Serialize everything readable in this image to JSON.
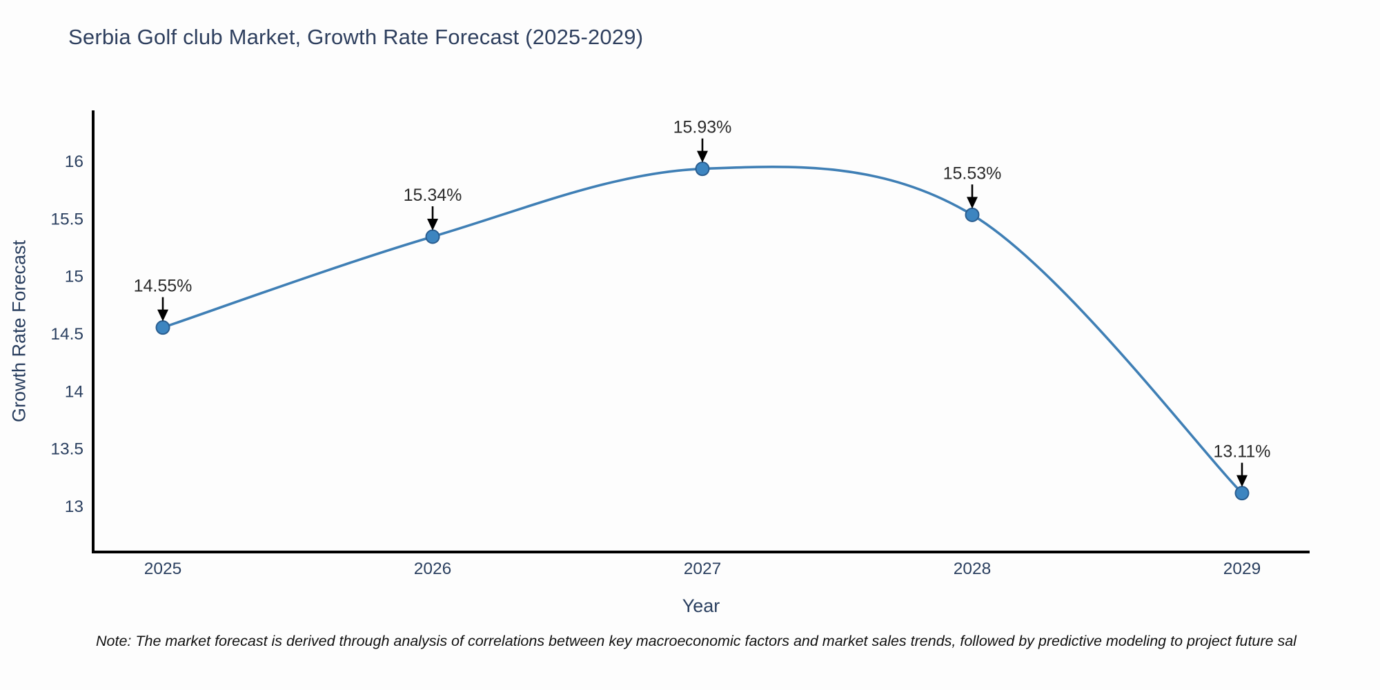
{
  "chart_data": {
    "type": "line",
    "title": "Serbia Golf club Market, Growth Rate Forecast (2025-2029)",
    "xlabel": "Year",
    "ylabel": "Growth Rate Forecast",
    "x": [
      2025,
      2026,
      2027,
      2028,
      2029
    ],
    "series": [
      {
        "name": "Growth Rate Forecast",
        "values": [
          14.55,
          15.34,
          15.93,
          15.53,
          13.11
        ],
        "point_labels": [
          "14.55%",
          "15.34%",
          "15.93%",
          "15.53%",
          "13.11%"
        ]
      }
    ],
    "x_tick_labels": [
      "2025",
      "2026",
      "2027",
      "2028",
      "2029"
    ],
    "y_tick_values": [
      13,
      13.5,
      14,
      14.5,
      15,
      15.5,
      16
    ],
    "y_tick_labels": [
      "13",
      "13.5",
      "14",
      "14.5",
      "15",
      "15.5",
      "16"
    ],
    "ylim": [
      12.6,
      16.44
    ],
    "xlim": [
      2024.74,
      2029.25
    ],
    "grid": false,
    "legend_position": "none",
    "line_shape": "spline",
    "colors": {
      "line": "#3f7fb5",
      "marker_fill": "#3d85c0",
      "marker_edge": "#2a5d8f",
      "annotation_arrow": "#000000",
      "axis_spine": "#000000",
      "tick_text": "#2a3f5f",
      "title_text": "#2e3f5e",
      "background": "#fdfdfd"
    }
  },
  "note": {
    "text": "Note: The market forecast is derived through analysis of correlations between key macroeconomic factors and market sales trends, followed by predictive modeling to project future sal"
  }
}
